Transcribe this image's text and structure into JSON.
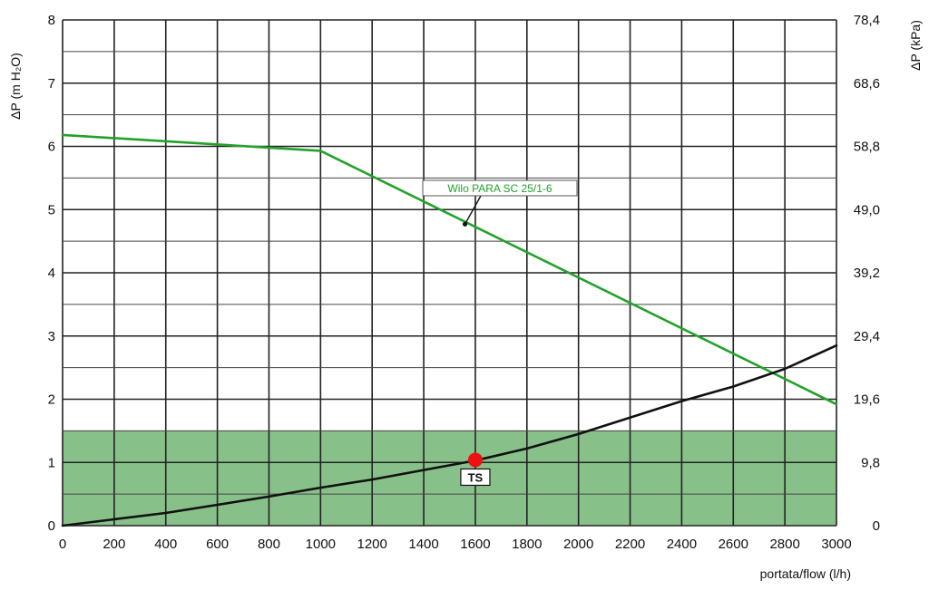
{
  "chart_data": {
    "type": "line",
    "xlabel": "portata/flow (l/h)",
    "ylabel_left": "ΔP (m H₂O)",
    "ylabel_right": "ΔP (kPa)",
    "xlim": [
      0,
      3000
    ],
    "ylim": [
      0,
      8
    ],
    "x_ticks": [
      0,
      200,
      400,
      600,
      800,
      1000,
      1200,
      1400,
      1600,
      1800,
      2000,
      2200,
      2400,
      2600,
      2800,
      3000
    ],
    "y_ticks_left": [
      0,
      1,
      2,
      3,
      4,
      5,
      6,
      7,
      8
    ],
    "y_ticks_right": [
      "0",
      "9,8",
      "19,6",
      "29,4",
      "39,2",
      "49,0",
      "58,8",
      "68,6",
      "78,4"
    ],
    "grid": true,
    "shaded_band": {
      "y_from": 0,
      "y_to": 1.5,
      "color": "#88c08a"
    },
    "series": [
      {
        "name": "Wilo PARA SC 25/1-6",
        "color": "#22a22a",
        "x": [
          0,
          1000,
          3000
        ],
        "y": [
          6.18,
          5.93,
          1.92
        ]
      },
      {
        "name": "",
        "color": "#111111",
        "x": [
          0,
          200,
          400,
          600,
          800,
          1000,
          1200,
          1400,
          1600,
          1800,
          2000,
          2200,
          2400,
          2600,
          2800,
          3000
        ],
        "y": [
          0,
          0.1,
          0.2,
          0.33,
          0.46,
          0.6,
          0.73,
          0.88,
          1.03,
          1.22,
          1.45,
          1.71,
          1.97,
          2.2,
          2.48,
          2.85
        ]
      }
    ],
    "annotations": [
      {
        "text": "Wilo PARA SC 25/1-6",
        "anchor_x": 1560,
        "anchor_y": 4.77,
        "color": "#22a22a"
      },
      {
        "text": "TS",
        "point_x": 1600,
        "point_y": 1.04,
        "point_color": "#ee1111"
      }
    ]
  }
}
